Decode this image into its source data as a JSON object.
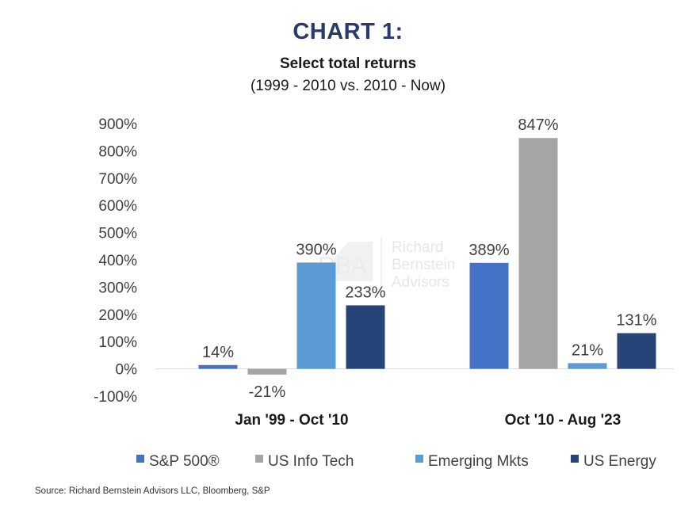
{
  "chart_data": {
    "type": "bar",
    "title": "CHART 1:",
    "subtitle": "Select total returns",
    "subtitle2": "(1999 - 2010 vs. 2010 - Now)",
    "categories": [
      "Jan '99 - Oct '10",
      "Oct '10 - Aug '23"
    ],
    "series": [
      {
        "name": "S&P 500®",
        "color": "#4472c4",
        "values": [
          14,
          389
        ],
        "labels": [
          "14%",
          "389%"
        ]
      },
      {
        "name": "US Info Tech",
        "color": "#a5a5a5",
        "values": [
          -21,
          847
        ],
        "labels": [
          "-21%",
          "847%"
        ]
      },
      {
        "name": "Emerging Mkts",
        "color": "#5b9bd5",
        "values": [
          390,
          21
        ],
        "labels": [
          "390%",
          "21%"
        ]
      },
      {
        "name": "US Energy",
        "color": "#264478",
        "values": [
          233,
          131
        ],
        "labels": [
          "233%",
          "131%"
        ]
      }
    ],
    "ylim": [
      -100,
      900
    ],
    "yticks": [
      "-100%",
      "0%",
      "100%",
      "200%",
      "300%",
      "400%",
      "500%",
      "600%",
      "700%",
      "800%",
      "900%"
    ],
    "ytick_values": [
      -100,
      0,
      100,
      200,
      300,
      400,
      500,
      600,
      700,
      800,
      900
    ],
    "grid": false,
    "legend": "bottom",
    "xlabel": "",
    "ylabel": ""
  },
  "watermark": {
    "logo_text": "RBA",
    "name_lines": [
      "Richard",
      "Bernstein",
      "Advisors"
    ]
  },
  "source": "Source: Richard Bernstein Advisors LLC, Bloomberg, S&P"
}
